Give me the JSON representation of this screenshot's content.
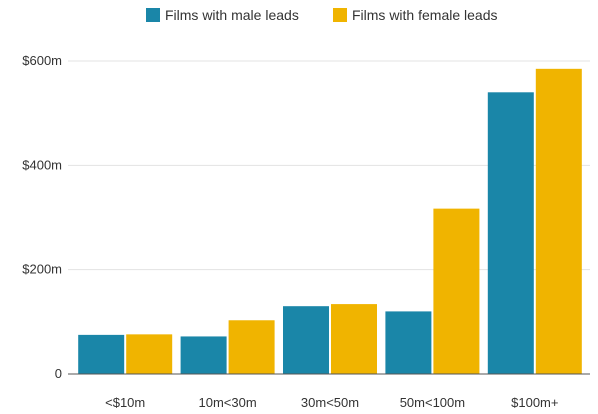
{
  "chart_data": {
    "type": "bar",
    "categories": [
      "<$10m",
      "10m<30m",
      "30m<50m",
      "50m<100m",
      "$100m+"
    ],
    "series": [
      {
        "name": "Films with male leads",
        "values": [
          75,
          72,
          130,
          120,
          540
        ],
        "color": "#1a86a8"
      },
      {
        "name": "Films with female leads",
        "values": [
          76,
          103,
          134,
          317,
          585
        ],
        "color": "#f0b400"
      }
    ],
    "ylim": [
      0,
      600
    ],
    "yticks": [
      {
        "value": 0,
        "label": "0"
      },
      {
        "value": 200,
        "label": "$200m"
      },
      {
        "value": 400,
        "label": "$400m"
      },
      {
        "value": 600,
        "label": "$600m"
      }
    ],
    "grid": true,
    "legend_position": "top"
  }
}
